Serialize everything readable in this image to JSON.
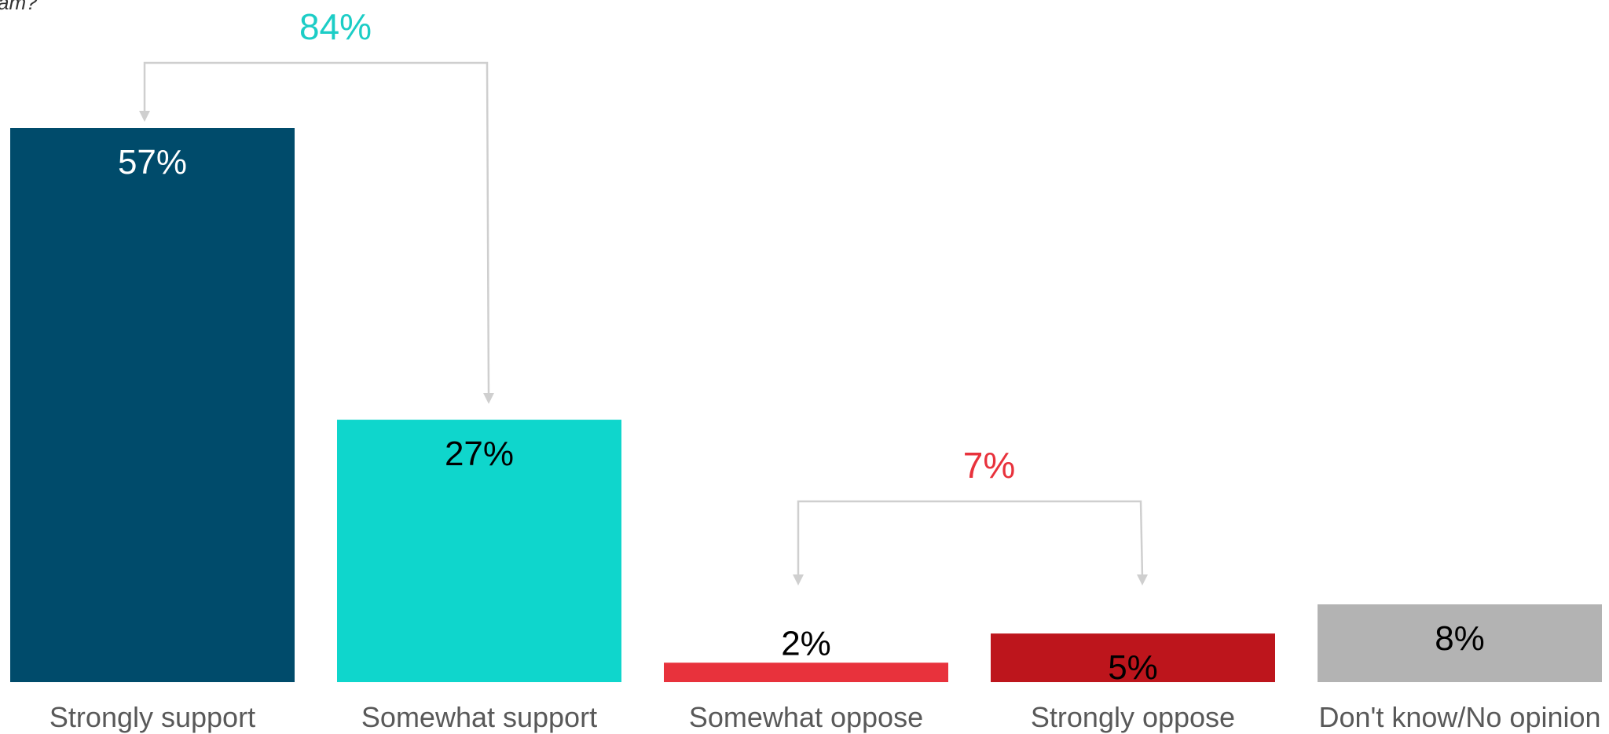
{
  "question_fragment": "am?",
  "chart_data": {
    "type": "bar",
    "categories": [
      "Strongly support",
      "Somewhat support",
      "Somewhat oppose",
      "Strongly oppose",
      "Don't know/No opinion"
    ],
    "values": [
      57,
      27,
      2,
      5,
      8
    ],
    "value_labels": [
      "57%",
      "27%",
      "2%",
      "5%",
      "8%"
    ],
    "colors": [
      "#004b6b",
      "#0fd6cc",
      "#e8323c",
      "#bd151c",
      "#b3b3b3"
    ],
    "label_colors": [
      "#ffffff",
      "#000000",
      "#000000",
      "#000000",
      "#000000"
    ],
    "groups": [
      {
        "label": "84%",
        "members": [
          0,
          1
        ],
        "color": "#1ccdc6"
      },
      {
        "label": "7%",
        "members": [
          2,
          3
        ],
        "color": "#e8323c"
      }
    ],
    "ylim": [
      0,
      57
    ],
    "grid": false,
    "legend": "none"
  }
}
